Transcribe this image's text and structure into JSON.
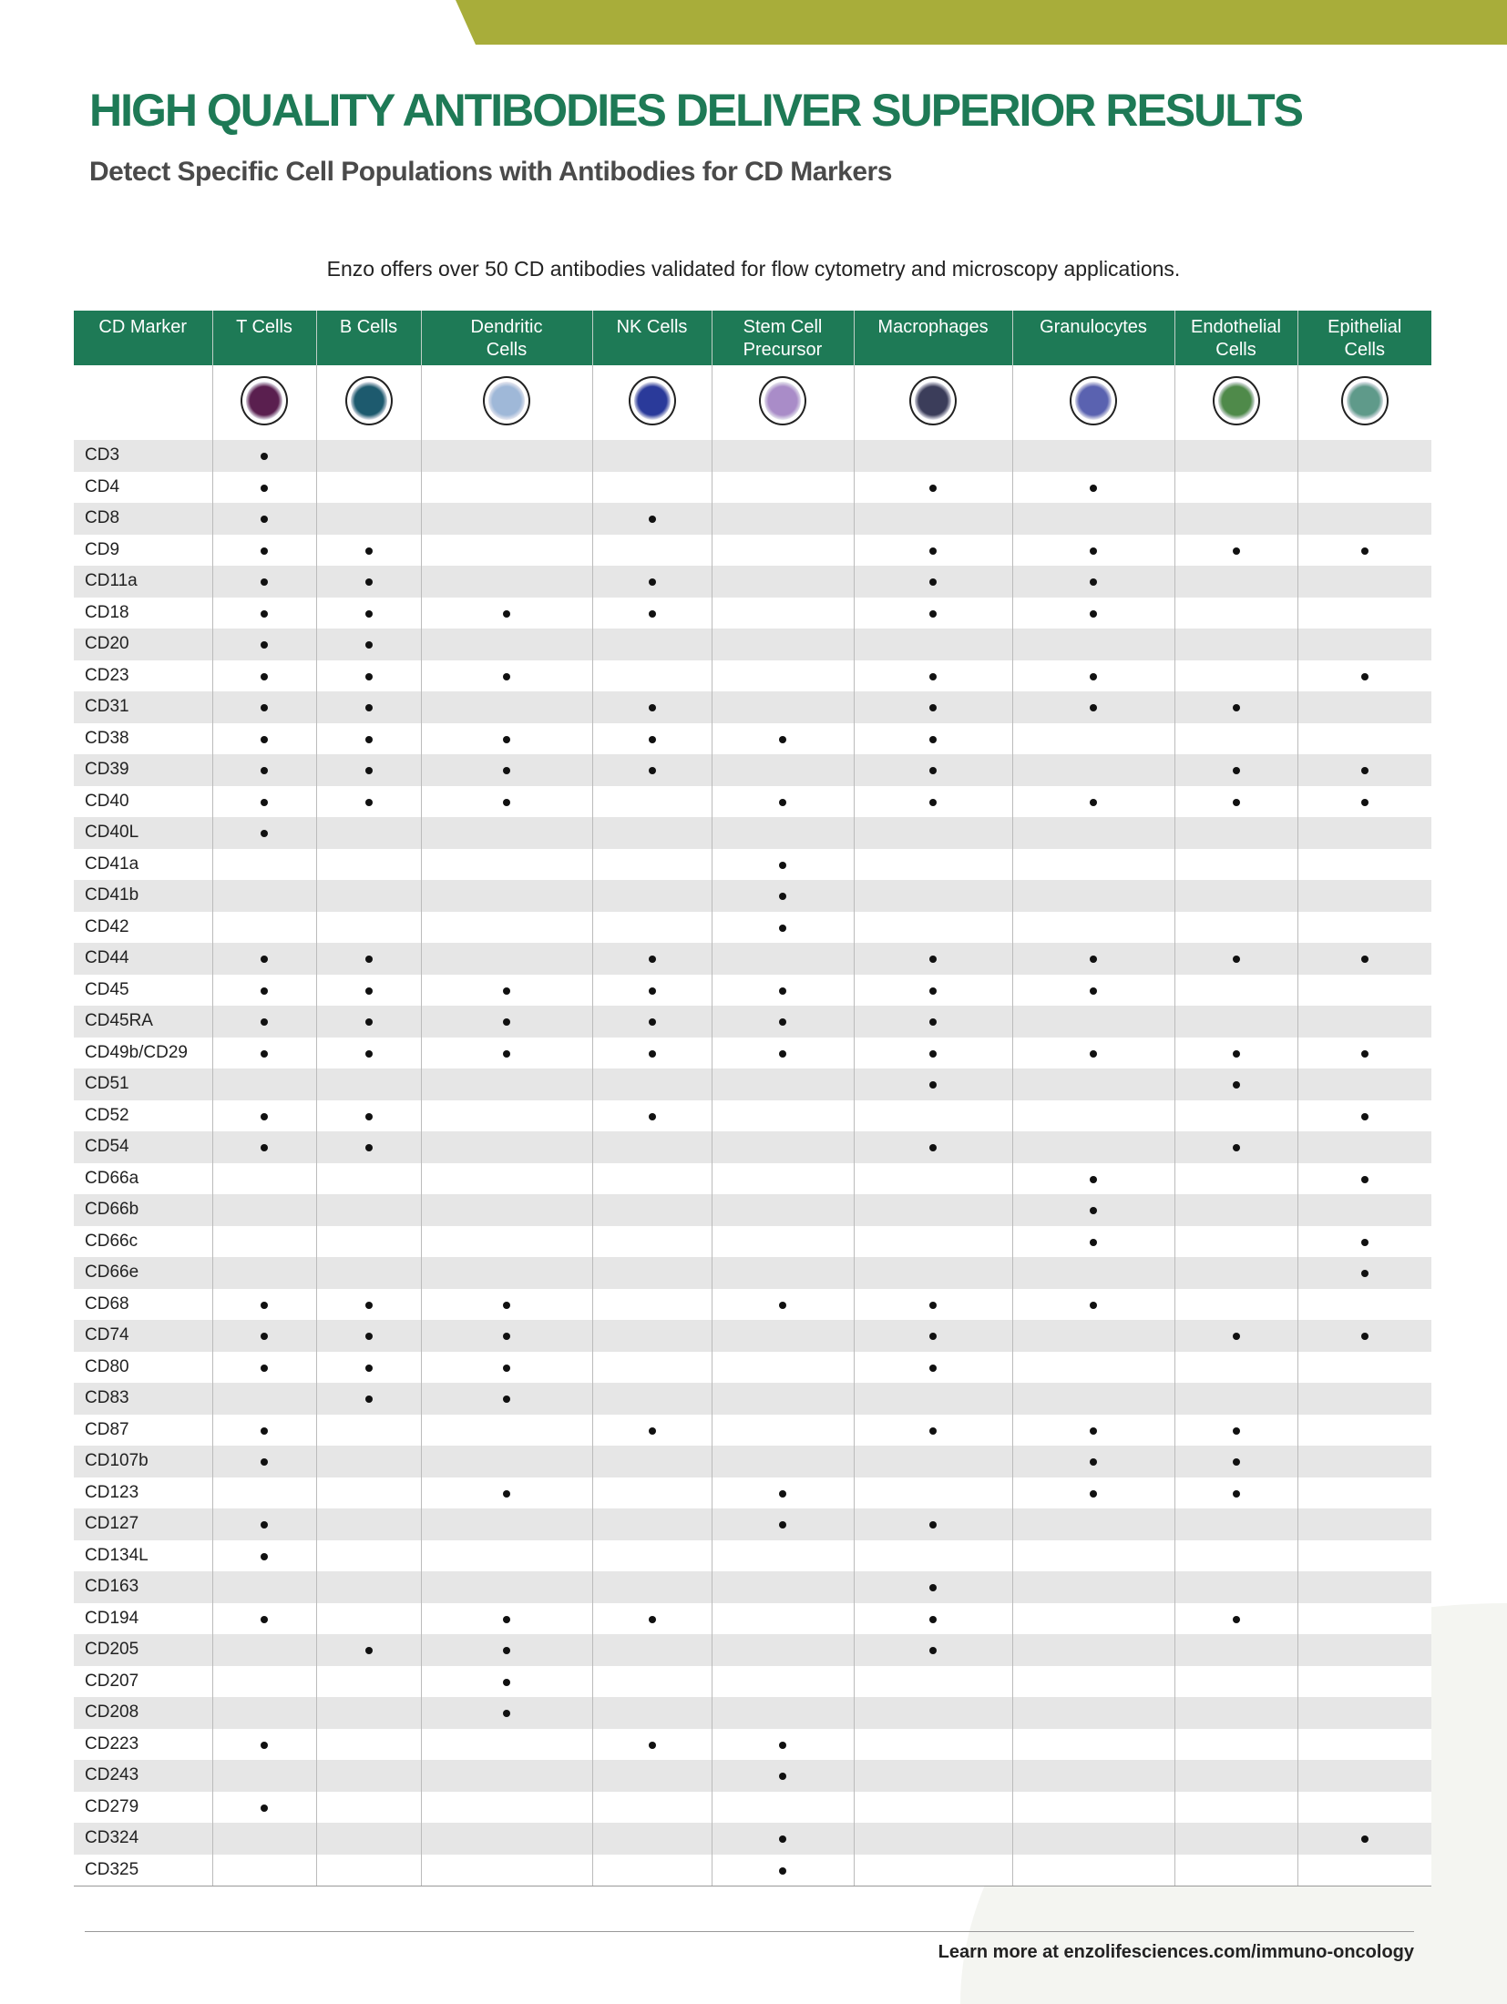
{
  "header": {
    "title": "HIGH QUALITY ANTIBODIES DELIVER SUPERIOR RESULTS",
    "subtitle": "Detect Specific Cell Populations with Antibodies for CD Markers",
    "intro": "Enzo offers over 50 CD antibodies validated for flow cytometry and microscopy applications."
  },
  "colors": {
    "brand_green": "#1e7a56",
    "banner_olive": "#a8ad3a",
    "row_stripe": "#e6e6e6"
  },
  "table": {
    "columns": [
      "CD Marker",
      "T Cells",
      "B Cells",
      "Dendritic Cells",
      "NK Cells",
      "Stem Cell Precursor",
      "Macrophages",
      "Granulocytes",
      "Endothelial Cells",
      "Epithelial Cells"
    ],
    "cell_icons": [
      {
        "name": "t-cell-image",
        "color": "#5a1f4f"
      },
      {
        "name": "b-cell-image",
        "color": "#1d5a6e"
      },
      {
        "name": "dendritic-cell-image",
        "color": "#9fb8d8"
      },
      {
        "name": "nk-cell-image",
        "color": "#2a3a9a"
      },
      {
        "name": "stem-cell-image",
        "color": "#a98cc8"
      },
      {
        "name": "macrophage-image",
        "color": "#3b3d5a"
      },
      {
        "name": "granulocyte-image",
        "color": "#5a62b0"
      },
      {
        "name": "endothelial-cell-image",
        "color": "#4f8a4a"
      },
      {
        "name": "epithelial-cell-image",
        "color": "#5f9a8a"
      }
    ],
    "rows": [
      {
        "marker": "CD3",
        "cells": [
          1,
          0,
          0,
          0,
          0,
          0,
          0,
          0,
          0
        ]
      },
      {
        "marker": "CD4",
        "cells": [
          1,
          0,
          0,
          0,
          0,
          1,
          1,
          0,
          0
        ]
      },
      {
        "marker": "CD8",
        "cells": [
          1,
          0,
          0,
          1,
          0,
          0,
          0,
          0,
          0
        ]
      },
      {
        "marker": "CD9",
        "cells": [
          1,
          1,
          0,
          0,
          0,
          1,
          1,
          1,
          1
        ]
      },
      {
        "marker": "CD11a",
        "cells": [
          1,
          1,
          0,
          1,
          0,
          1,
          1,
          0,
          0
        ]
      },
      {
        "marker": "CD18",
        "cells": [
          1,
          1,
          1,
          1,
          0,
          1,
          1,
          0,
          0
        ]
      },
      {
        "marker": "CD20",
        "cells": [
          1,
          1,
          0,
          0,
          0,
          0,
          0,
          0,
          0
        ]
      },
      {
        "marker": "CD23",
        "cells": [
          1,
          1,
          1,
          0,
          0,
          1,
          1,
          0,
          1
        ]
      },
      {
        "marker": "CD31",
        "cells": [
          1,
          1,
          0,
          1,
          0,
          1,
          1,
          1,
          0
        ]
      },
      {
        "marker": "CD38",
        "cells": [
          1,
          1,
          1,
          1,
          1,
          1,
          0,
          0,
          0
        ]
      },
      {
        "marker": "CD39",
        "cells": [
          1,
          1,
          1,
          1,
          0,
          1,
          0,
          1,
          1
        ]
      },
      {
        "marker": "CD40",
        "cells": [
          1,
          1,
          1,
          0,
          1,
          1,
          1,
          1,
          1
        ]
      },
      {
        "marker": "CD40L",
        "cells": [
          1,
          0,
          0,
          0,
          0,
          0,
          0,
          0,
          0
        ]
      },
      {
        "marker": "CD41a",
        "cells": [
          0,
          0,
          0,
          0,
          1,
          0,
          0,
          0,
          0
        ]
      },
      {
        "marker": "CD41b",
        "cells": [
          0,
          0,
          0,
          0,
          1,
          0,
          0,
          0,
          0
        ]
      },
      {
        "marker": "CD42",
        "cells": [
          0,
          0,
          0,
          0,
          1,
          0,
          0,
          0,
          0
        ]
      },
      {
        "marker": "CD44",
        "cells": [
          1,
          1,
          0,
          1,
          0,
          1,
          1,
          1,
          1
        ]
      },
      {
        "marker": "CD45",
        "cells": [
          1,
          1,
          1,
          1,
          1,
          1,
          1,
          0,
          0
        ]
      },
      {
        "marker": "CD45RA",
        "cells": [
          1,
          1,
          1,
          1,
          1,
          1,
          0,
          0,
          0
        ]
      },
      {
        "marker": "CD49b/CD29",
        "cells": [
          1,
          1,
          1,
          1,
          1,
          1,
          1,
          1,
          1
        ]
      },
      {
        "marker": "CD51",
        "cells": [
          0,
          0,
          0,
          0,
          0,
          1,
          0,
          1,
          0
        ]
      },
      {
        "marker": "CD52",
        "cells": [
          1,
          1,
          0,
          1,
          0,
          0,
          0,
          0,
          1
        ]
      },
      {
        "marker": "CD54",
        "cells": [
          1,
          1,
          0,
          0,
          0,
          1,
          0,
          1,
          0
        ]
      },
      {
        "marker": "CD66a",
        "cells": [
          0,
          0,
          0,
          0,
          0,
          0,
          1,
          0,
          1
        ]
      },
      {
        "marker": "CD66b",
        "cells": [
          0,
          0,
          0,
          0,
          0,
          0,
          1,
          0,
          0
        ]
      },
      {
        "marker": "CD66c",
        "cells": [
          0,
          0,
          0,
          0,
          0,
          0,
          1,
          0,
          1
        ]
      },
      {
        "marker": "CD66e",
        "cells": [
          0,
          0,
          0,
          0,
          0,
          0,
          0,
          0,
          1
        ]
      },
      {
        "marker": "CD68",
        "cells": [
          1,
          1,
          1,
          0,
          1,
          1,
          1,
          0,
          0
        ]
      },
      {
        "marker": "CD74",
        "cells": [
          1,
          1,
          1,
          0,
          0,
          1,
          0,
          1,
          1
        ]
      },
      {
        "marker": "CD80",
        "cells": [
          1,
          1,
          1,
          0,
          0,
          1,
          0,
          0,
          0
        ]
      },
      {
        "marker": "CD83",
        "cells": [
          0,
          1,
          1,
          0,
          0,
          0,
          0,
          0,
          0
        ]
      },
      {
        "marker": "CD87",
        "cells": [
          1,
          0,
          0,
          1,
          0,
          1,
          1,
          1,
          0
        ]
      },
      {
        "marker": "CD107b",
        "cells": [
          1,
          0,
          0,
          0,
          0,
          0,
          1,
          1,
          0
        ]
      },
      {
        "marker": "CD123",
        "cells": [
          0,
          0,
          1,
          0,
          1,
          0,
          1,
          1,
          0
        ]
      },
      {
        "marker": "CD127",
        "cells": [
          1,
          0,
          0,
          0,
          1,
          1,
          0,
          0,
          0
        ]
      },
      {
        "marker": "CD134L",
        "cells": [
          1,
          0,
          0,
          0,
          0,
          0,
          0,
          0,
          0
        ]
      },
      {
        "marker": "CD163",
        "cells": [
          0,
          0,
          0,
          0,
          0,
          1,
          0,
          0,
          0
        ]
      },
      {
        "marker": "CD194",
        "cells": [
          1,
          0,
          1,
          1,
          0,
          1,
          0,
          1,
          0
        ]
      },
      {
        "marker": "CD205",
        "cells": [
          0,
          1,
          1,
          0,
          0,
          1,
          0,
          0,
          0
        ]
      },
      {
        "marker": "CD207",
        "cells": [
          0,
          0,
          1,
          0,
          0,
          0,
          0,
          0,
          0
        ]
      },
      {
        "marker": "CD208",
        "cells": [
          0,
          0,
          1,
          0,
          0,
          0,
          0,
          0,
          0
        ]
      },
      {
        "marker": "CD223",
        "cells": [
          1,
          0,
          0,
          1,
          1,
          0,
          0,
          0,
          0
        ]
      },
      {
        "marker": "CD243",
        "cells": [
          0,
          0,
          0,
          0,
          1,
          0,
          0,
          0,
          0
        ]
      },
      {
        "marker": "CD279",
        "cells": [
          1,
          0,
          0,
          0,
          0,
          0,
          0,
          0,
          0
        ]
      },
      {
        "marker": "CD324",
        "cells": [
          0,
          0,
          0,
          0,
          1,
          0,
          0,
          0,
          1
        ]
      },
      {
        "marker": "CD325",
        "cells": [
          0,
          0,
          0,
          0,
          1,
          0,
          0,
          0,
          0
        ]
      }
    ]
  },
  "footer": {
    "text": "Learn more at enzolifesciences.com/immuno-oncology"
  }
}
